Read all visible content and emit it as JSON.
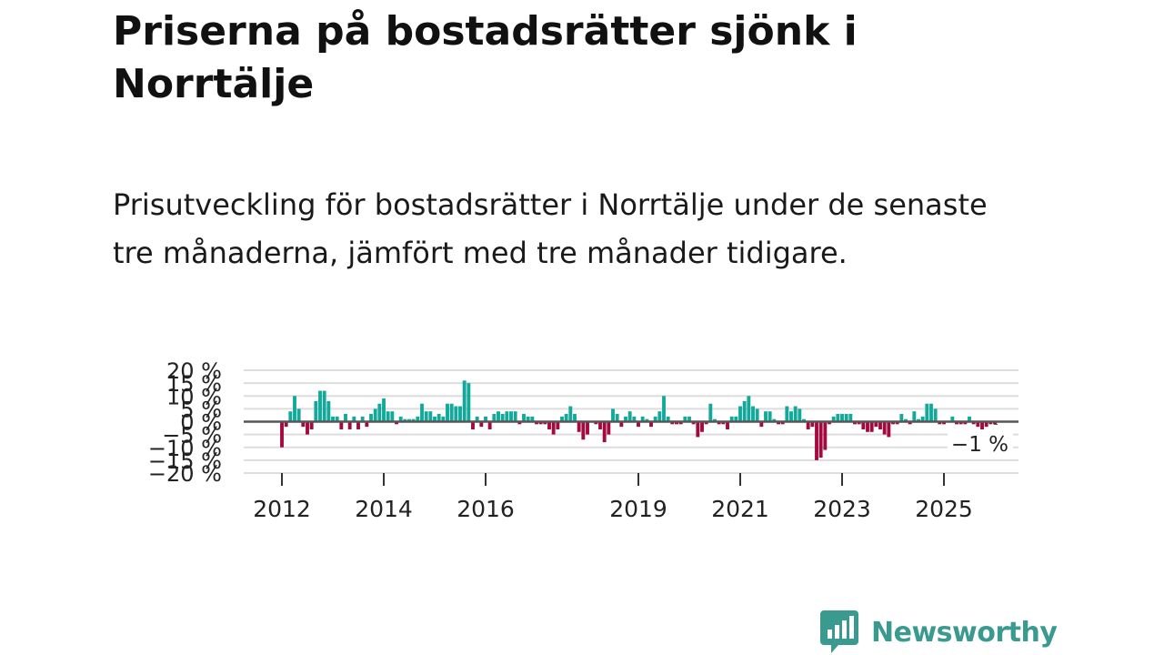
{
  "title": "Priserna på bostadsrätter sjönk i Norrtälje",
  "subtitle": "Prisutveckling för bostadsrätter i Norrtälje under de senaste tre månaderna, jämfört med tre månader tidigare.",
  "brand": {
    "name": "Newsworthy",
    "color": "#3a9a90"
  },
  "colors": {
    "positive": "#12a89a",
    "negative": "#a3093e",
    "zero_line": "#555555",
    "grid": "#dddddd"
  },
  "chart_data": {
    "type": "bar",
    "unit": "%",
    "ylim": [
      -20,
      20
    ],
    "y_ticks": [
      {
        "value": 20,
        "label": "20 %"
      },
      {
        "value": 15,
        "label": "15 %"
      },
      {
        "value": 10,
        "label": "10 %"
      },
      {
        "value": 5,
        "label": "5 %"
      },
      {
        "value": 0,
        "label": "0 %"
      },
      {
        "value": -5,
        "label": "−5 %"
      },
      {
        "value": -10,
        "label": "−10 %"
      },
      {
        "value": -15,
        "label": "−15 %"
      },
      {
        "value": -20,
        "label": "−20 %"
      }
    ],
    "x_ticks": [
      {
        "year": 2012,
        "label": "2012"
      },
      {
        "year": 2014,
        "label": "2014"
      },
      {
        "year": 2016,
        "label": "2016"
      },
      {
        "year": 2019,
        "label": "2019"
      },
      {
        "year": 2021,
        "label": "2021"
      },
      {
        "year": 2023,
        "label": "2023"
      },
      {
        "year": 2025,
        "label": "2025"
      }
    ],
    "start_year": 2012,
    "start_month": 1,
    "values": [
      -10,
      -2,
      4,
      10,
      5,
      -2,
      -5,
      -3,
      8,
      12,
      12,
      8,
      2,
      2,
      -3,
      3,
      -3,
      2,
      -3,
      2,
      -2,
      3,
      5,
      7,
      9,
      4,
      4,
      -1,
      2,
      1,
      1,
      1,
      2,
      7,
      4,
      4,
      2,
      3,
      2,
      7,
      7,
      6,
      6,
      16,
      15,
      -3,
      2,
      -2,
      2,
      -3,
      3,
      4,
      3,
      4,
      4,
      4,
      -1,
      3,
      2,
      2,
      -1,
      -1,
      -1,
      -3,
      -5,
      -3,
      2,
      3,
      6,
      3,
      -4,
      -7,
      -5,
      0,
      -1,
      -3,
      -8,
      -5,
      5,
      3,
      -2,
      2,
      4,
      2,
      -2,
      2,
      1,
      -2,
      2,
      4,
      10,
      2,
      -1,
      -1,
      -1,
      2,
      2,
      -1,
      -6,
      -4,
      -1,
      7,
      1,
      -1,
      -1,
      -3,
      2,
      2,
      6,
      8,
      10,
      6,
      5,
      -2,
      4,
      4,
      1,
      -1,
      -1,
      6,
      4,
      6,
      5,
      1,
      -3,
      -2,
      -15,
      -14,
      -11,
      -1,
      2,
      3,
      3,
      3,
      3,
      -1,
      -1,
      -3,
      -4,
      -4,
      -2,
      -3,
      -5,
      -6,
      -1,
      -1,
      3,
      1,
      -1,
      4,
      1,
      2,
      7,
      7,
      5,
      -1,
      -1,
      0,
      2,
      -1,
      -1,
      -1,
      2,
      -1,
      -2,
      -3,
      -2,
      -1,
      -1
    ]
  },
  "annotation": {
    "label": "−1 %",
    "value": -1
  }
}
